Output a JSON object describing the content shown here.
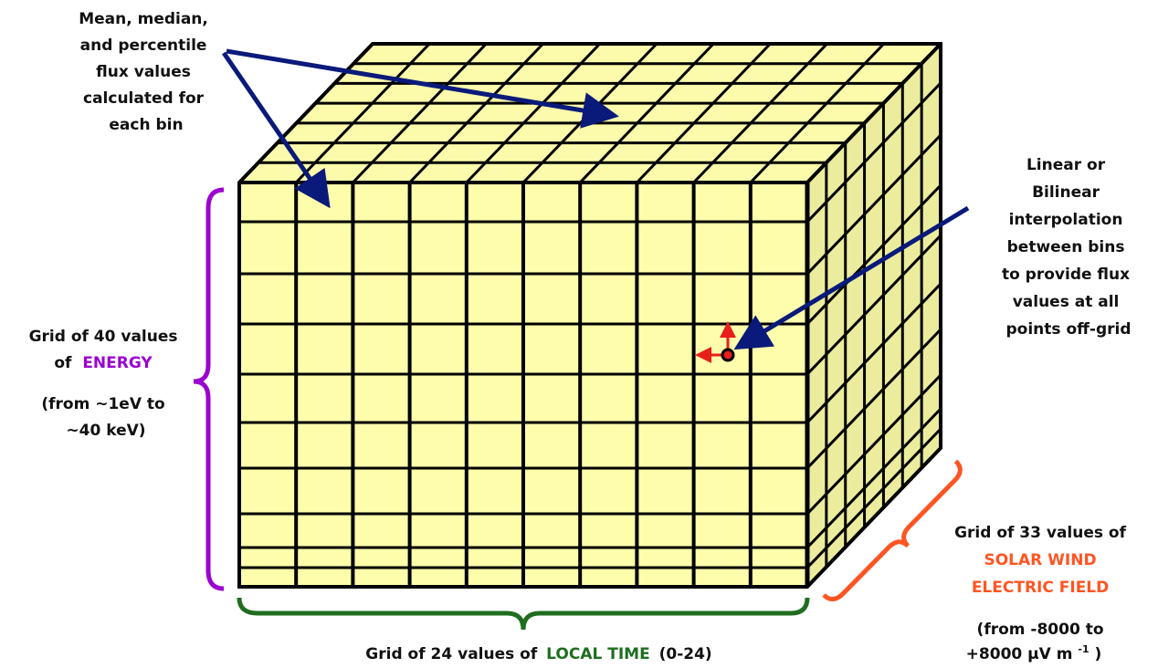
{
  "annotations": {
    "bin_values": {
      "lines": [
        "Mean, median,",
        "and percentile",
        "flux values",
        "calculated for",
        "each bin"
      ]
    },
    "interpolation": {
      "lines": [
        "Linear or",
        "Bilinear",
        "interpolation",
        "between bins",
        "to provide flux",
        "values at all",
        "points off-grid"
      ]
    },
    "energy": {
      "line1": "Grid of 40 values",
      "prefix": "of",
      "highlight": "ENERGY",
      "range_lines": [
        "(from ~1eV to",
        "~40 keV)"
      ]
    },
    "local_time": {
      "prefix": "Grid of 24 values of",
      "highlight": "LOCAL TIME",
      "suffix": "(0-24)"
    },
    "electric_field": {
      "line1": "Grid of 33 values of",
      "highlight_lines": [
        "SOLAR WIND",
        "ELECTRIC FIELD"
      ],
      "range_line1": "(from -8000 to",
      "range_line2": "+8000 μV m",
      "superscript": "-1",
      "close": ")"
    }
  }
}
